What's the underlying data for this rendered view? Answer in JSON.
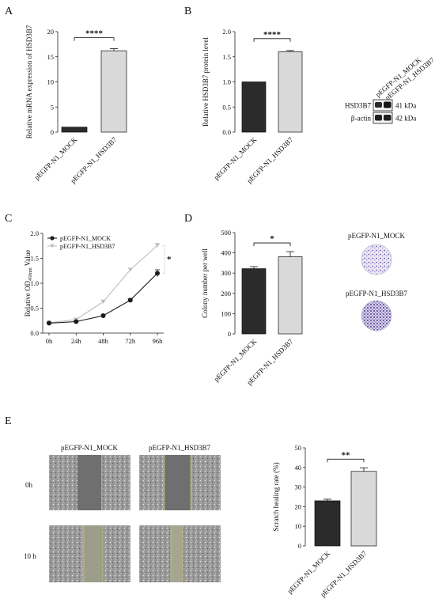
{
  "panels": {
    "A": "A",
    "B": "B",
    "C": "C",
    "D": "D",
    "E": "E"
  },
  "colors": {
    "mock": "#2b2b2b",
    "hsd3b7": "#d9d9d9",
    "mock_line": "#1a1a1a",
    "hsd3b7_line": "#bdbdbd"
  },
  "chart_data": [
    {
      "id": "A",
      "type": "bar",
      "categories": [
        "pEGFP-N1_MOCK",
        "pEGFP-N1_HSD3B7"
      ],
      "values": [
        1.0,
        16.2
      ],
      "errors": [
        0,
        0.4
      ],
      "ylabel": "Relative mRNA expression of HSD3B7",
      "ylim": [
        0,
        20
      ],
      "yticks": [
        "0",
        "5",
        "10",
        "15",
        "20"
      ],
      "significance": "****"
    },
    {
      "id": "B",
      "type": "bar",
      "categories": [
        "pEGFP-N1_MOCK",
        "pEGFP-N1_HSD3B7"
      ],
      "values": [
        1.0,
        1.6
      ],
      "errors": [
        0,
        0.025
      ],
      "ylabel": "Relative HSD3B7 protein level",
      "ylim": [
        0,
        2.0
      ],
      "yticks": [
        "0.0",
        "0.5",
        "1.0",
        "1.5",
        "2.0"
      ],
      "significance": "****"
    },
    {
      "id": "C",
      "type": "line",
      "x": [
        "0h",
        "24h",
        "48h",
        "72h",
        "96h"
      ],
      "series": [
        {
          "name": "pEGFP-N1_MOCK",
          "values": [
            0.2,
            0.23,
            0.35,
            0.66,
            1.2
          ],
          "errors": [
            0.02,
            0.02,
            0.02,
            0.03,
            0.07
          ]
        },
        {
          "name": "pEGFP-N1_HSD3B7",
          "values": [
            0.21,
            0.27,
            0.63,
            1.27,
            1.76
          ],
          "errors": [
            0.02,
            0.02,
            0.03,
            0.03,
            0.04
          ]
        }
      ],
      "ylabel_main": "Relative OD",
      "ylabel_sub": "450nm",
      "ylabel_tail": " Value",
      "ylim": [
        0,
        2.0
      ],
      "yticks": [
        "0.0",
        "0.5",
        "1.0",
        "1.5",
        "2.0"
      ],
      "legend": "top-left",
      "significance": "*"
    },
    {
      "id": "D",
      "type": "bar",
      "categories": [
        "pEGFP-N1_MOCK",
        "pEGFP-N1_HSD3B7"
      ],
      "values": [
        322,
        381
      ],
      "errors": [
        10,
        25
      ],
      "ylabel": "Colony number per well",
      "ylim": [
        0,
        500
      ],
      "yticks": [
        "0",
        "100",
        "200",
        "300",
        "400",
        "500"
      ],
      "significance": "*"
    },
    {
      "id": "E",
      "type": "bar",
      "categories": [
        "pEGFP-N1_MOCK",
        "pEGFP-N1_HSD3B7"
      ],
      "values": [
        23,
        38
      ],
      "errors": [
        0.8,
        1.8
      ],
      "ylabel": "Scratch healing rate (%)",
      "ylim": [
        0,
        50
      ],
      "yticks": [
        "0",
        "10",
        "20",
        "30",
        "40",
        "50"
      ],
      "significance": "**"
    }
  ],
  "western": {
    "lanes": [
      "pEGFP-N1_MOCK",
      "pEGFP-N1_HSD3B7"
    ],
    "rows": [
      {
        "protein": "HSD3B7",
        "size": "41 kDa"
      },
      {
        "protein": "β-actin",
        "size": "42 kDa"
      }
    ]
  },
  "colony": {
    "labels": [
      "pEGFP-N1_MOCK",
      "pEGFP-N1_HSD3B7"
    ]
  },
  "scratch": {
    "columns": [
      "pEGFP-N1_MOCK",
      "pEGFP-N1_HSD3B7"
    ],
    "rows": [
      "0h",
      "10 h"
    ]
  }
}
